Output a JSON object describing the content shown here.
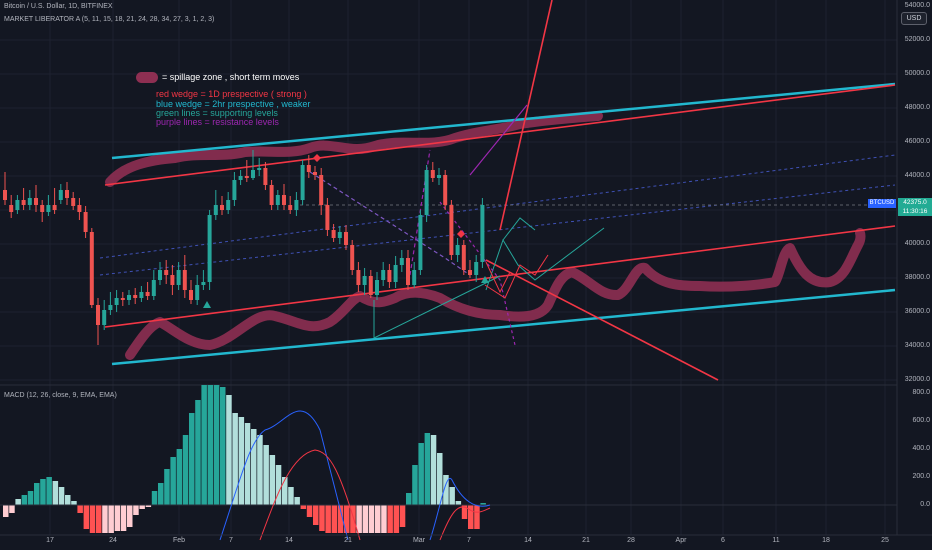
{
  "header": {
    "title": "Bitcoin / U.S. Dollar, 1D, BITFINEX",
    "indicator": "MARKET LIBERATOR A (5, 11, 15, 18, 21, 24, 28, 34, 27, 3, 1, 2, 3)"
  },
  "currency_button": "USD",
  "price_axis": {
    "top_label": "54000.0",
    "ticks": [
      "52000.0",
      "50000.0",
      "48000.0",
      "46000.0",
      "44000.0",
      "42000.0",
      "40000.0",
      "38000.0",
      "36000.0",
      "34000.0",
      "32000.0"
    ]
  },
  "price_tags": {
    "symbol": "BTCUSD",
    "price": "42375.0",
    "countdown": "11:30:16"
  },
  "legend": {
    "spillage": "= spillage zone , short term moves",
    "red_wedge": "red wedge = 1D prespective ( strong )",
    "blue_wedge": "blue wedge = 2hr prespective , weaker",
    "green_lines": "green lines = supporting levels",
    "purple_lines": "purple lines = resistance levels"
  },
  "macd": {
    "label": "MACD (12, 26, close, 9, EMA, EMA)",
    "ticks": [
      "800.0",
      "600.0",
      "400.0",
      "200.0",
      "0.0"
    ]
  },
  "time_axis": {
    "ticks": [
      "17",
      "24",
      "Feb",
      "7",
      "14",
      "21",
      "Mar",
      "7",
      "14",
      "21",
      "28",
      "Apr",
      "6",
      "11",
      "18",
      "25"
    ]
  },
  "colors": {
    "background": "#131722",
    "bull": "#26a69a",
    "bear": "#ef5350",
    "wedge_red": "#f23645",
    "wedge_blue": "#22b8cf",
    "spillage": "#8e2f52",
    "green_line": "#26a69a",
    "purple_line": "#9c27b0",
    "price_tag": "#2962ff"
  },
  "icons": {
    "buy_marker": "up-triangle",
    "sell_marker": "diamond"
  }
}
